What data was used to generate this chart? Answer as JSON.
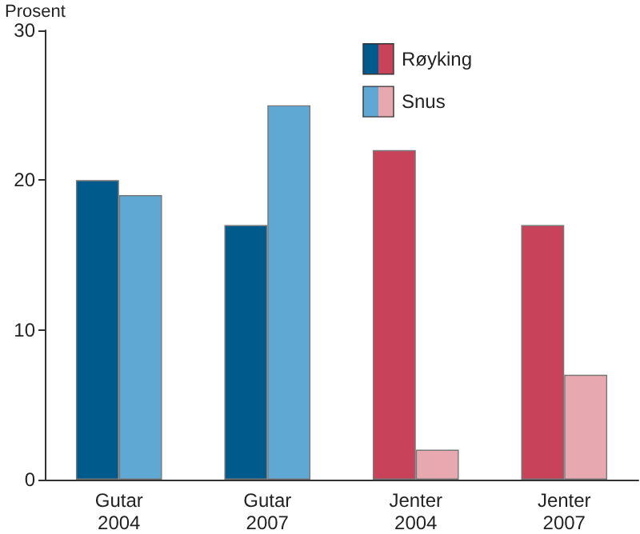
{
  "chart_data": {
    "type": "bar",
    "ylabel": "Prosent",
    "categories": [
      "Gutar\n2004",
      "Gutar\n2007",
      "Jenter\n2004",
      "Jenter\n2007"
    ],
    "series": [
      {
        "name": "Røyking",
        "colors": [
          "#005a8c",
          "#005a8c",
          "#c8435a",
          "#c8435a"
        ],
        "values": [
          20,
          17,
          22,
          17
        ]
      },
      {
        "name": "Snus",
        "colors": [
          "#5fa8d3",
          "#5fa8d3",
          "#e8a8b0",
          "#e8a8b0"
        ],
        "values": [
          19,
          25,
          2,
          7
        ]
      }
    ],
    "ylim": [
      0,
      30
    ],
    "yticks": [
      0,
      10,
      20,
      30
    ],
    "grid": false,
    "legend": "top right"
  }
}
